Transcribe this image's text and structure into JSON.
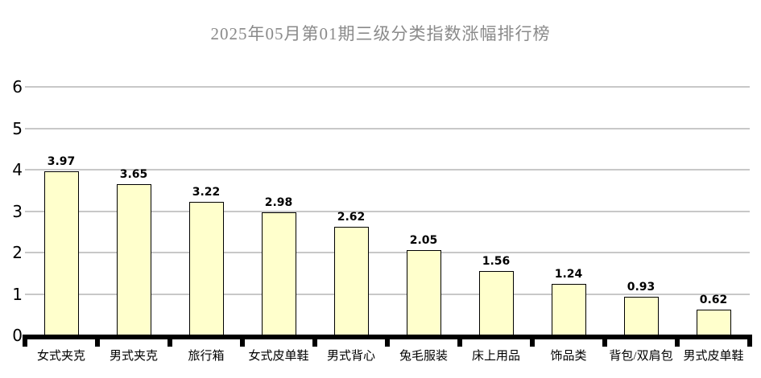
{
  "chart_data": {
    "type": "bar",
    "title": "2025年05月第01期三级分类指数涨幅排行榜",
    "categories": [
      "女式夹克",
      "男式夹克",
      "旅行箱",
      "女式皮单鞋",
      "男式背心",
      "兔毛服装",
      "床上用品",
      "饰品类",
      "背包/双肩包",
      "男式皮单鞋"
    ],
    "values": [
      3.97,
      3.65,
      3.22,
      2.98,
      2.62,
      2.05,
      1.56,
      1.24,
      0.93,
      0.62
    ],
    "value_labels": [
      "3.97",
      "3.65",
      "3.22",
      "2.98",
      "2.62",
      "2.05",
      "1.56",
      "1.24",
      "0.93",
      "0.62"
    ],
    "xlabel": "",
    "ylabel": "",
    "ylim": [
      0,
      6
    ],
    "yticks": [
      0,
      1,
      2,
      3,
      4,
      5,
      6
    ],
    "grid": true,
    "legend": false,
    "colors": {
      "bar_fill": "#ffffcc",
      "bar_border": "#000000",
      "gridline": "#c8c8c8",
      "axis": "#000000",
      "title_text": "#8a8a8a",
      "label_text": "#000000",
      "background": "#ffffff"
    }
  }
}
